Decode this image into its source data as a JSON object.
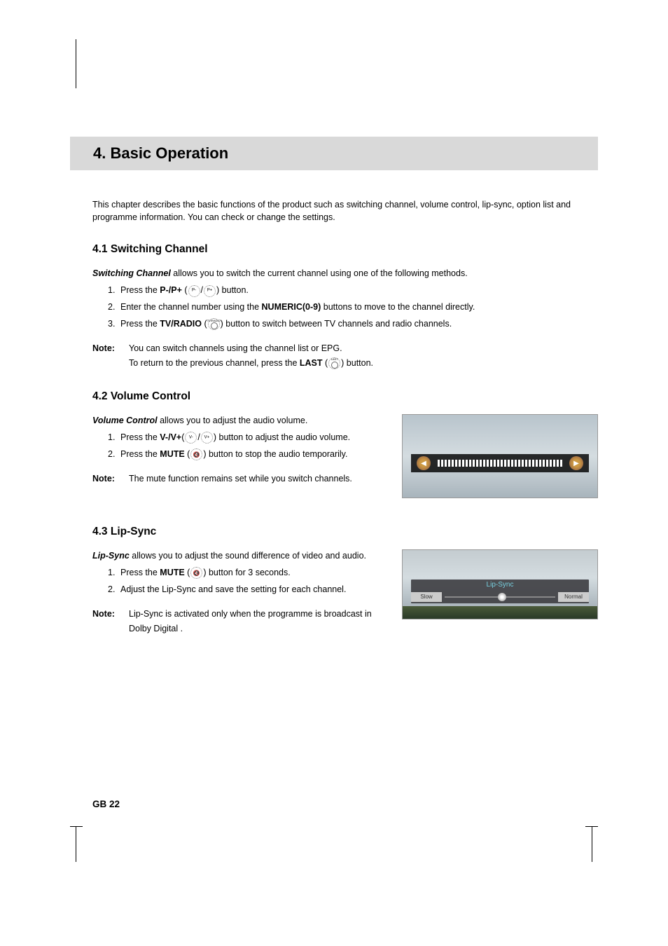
{
  "chapter_title": "4. Basic Operation",
  "intro": "This chapter describes the basic functions of the product such as switching channel, volume control, lip-sync, option list and programme information. You can check or change the settings.",
  "sections": {
    "switching": {
      "heading": "4.1 Switching Channel",
      "term": "Switching Channel",
      "desc": " allows you to switch the current channel using one of the following methods.",
      "steps": [
        {
          "num": "1.",
          "pre": "Press the ",
          "bold": "P-/P+",
          "mid": " (",
          "post": ") button."
        },
        {
          "num": "2.",
          "pre": "Enter the channel number using the ",
          "bold": "NUMERIC(0-9)",
          "post": " buttons to move to the channel directly."
        },
        {
          "num": "3.",
          "pre": "Press the ",
          "bold": "TV/RADIO",
          "mid": " (",
          "post": ") button to switch between TV channels and radio channels."
        }
      ],
      "note_label": "Note:",
      "note_lines": {
        "l1": "You can switch channels using the channel list or EPG.",
        "l2_pre": "To return to the previous channel, press the ",
        "l2_bold": "LAST",
        "l2_mid": " (",
        "l2_post": ") button."
      }
    },
    "volume": {
      "heading": "4.2 Volume Control",
      "term": "Volume Control",
      "desc": " allows you to adjust the audio volume.",
      "steps": [
        {
          "num": "1.",
          "pre": "Press the ",
          "bold": "V-/V+",
          "mid": "(",
          "post": ") button to adjust the audio volume."
        },
        {
          "num": "2.",
          "pre": "Press the ",
          "bold": "MUTE",
          "mid": " (",
          "post": ") button to stop the audio temporarily."
        }
      ],
      "note_label": "Note:",
      "note": "The mute function remains set while you switch channels."
    },
    "lipsync": {
      "heading": "4.3 Lip-Sync",
      "term": "Lip-Sync",
      "desc": " allows you to adjust the sound difference of video and audio.",
      "steps": [
        {
          "num": "1.",
          "pre": "Press the ",
          "bold": "MUTE",
          "mid": " (",
          "post": ") button for 3 seconds."
        },
        {
          "num": "2.",
          "text": "Adjust the Lip-Sync and save the setting for each channel."
        }
      ],
      "note_label": "Note:",
      "note": "Lip-Sync is activated only when the programme is broadcast in Dolby Digital .",
      "figure": {
        "title": "Lip-Sync",
        "left_label": "Slow",
        "right_label": "Normal"
      }
    }
  },
  "footer": "GB 22",
  "volume_figure": {
    "speaker_left_glyph": "◀",
    "speaker_right_glyph": "▶"
  },
  "colors": {
    "header_band": "#d9d9d9",
    "lipsync_title": "#78d0e0"
  }
}
